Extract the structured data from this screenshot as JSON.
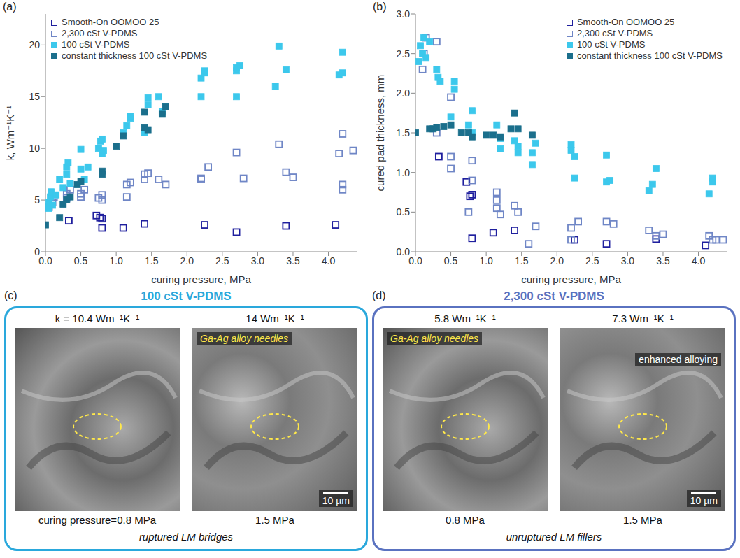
{
  "chart_data": [
    {
      "type": "scatter",
      "title": "(a)",
      "x_label": "curing pressure, MPa",
      "y_label": "k, Wm⁻¹K⁻¹",
      "xlim": [
        0,
        4.4
      ],
      "xticks": [
        {
          "value": 0,
          "label": "0.0"
        },
        0.5,
        {
          "value": 1,
          "label": "1.0"
        },
        1.5,
        {
          "value": 2,
          "label": "2.0"
        },
        2.5,
        {
          "value": 3,
          "label": "3.0"
        },
        3.5,
        {
          "value": 4,
          "label": "4.0"
        }
      ],
      "ylim": [
        0,
        23
      ],
      "yticks": [
        0,
        5,
        10,
        15,
        20
      ],
      "legend": "top-left",
      "series": [
        {
          "name": "Smooth-On OOMOO 25",
          "color": "#1f1f9e",
          "marker": "square-open",
          "x": [
            0.33,
            0.72,
            0.77,
            0.8,
            0.8,
            1.1,
            1.4,
            2.25,
            2.7,
            3.4,
            4.1
          ],
          "values": [
            3.0,
            3.5,
            3.3,
            2.3,
            3.2,
            2.3,
            2.7,
            2.6,
            1.9,
            2.5,
            2.6
          ]
        },
        {
          "name": "2,300 cSt V-PDMS",
          "color": "#6f86c6",
          "marker": "square-open",
          "x": [
            0.05,
            0.1,
            0.12,
            0.3,
            0.3,
            0.35,
            0.5,
            0.5,
            0.55,
            0.75,
            0.8,
            0.8,
            1.15,
            1.15,
            1.2,
            1.4,
            1.4,
            1.45,
            1.6,
            1.7,
            2.2,
            2.2,
            2.3,
            2.7,
            2.8,
            3.3,
            3.4,
            3.5,
            4.15,
            4.2,
            4.2,
            4.2,
            4.35
          ],
          "values": [
            4.3,
            4.8,
            5.3,
            5.2,
            5.6,
            6.0,
            5.3,
            5.6,
            6.0,
            5.2,
            5.5,
            5.0,
            5.3,
            6.5,
            6.7,
            7.0,
            7.5,
            7.6,
            7.0,
            6.5,
            7.0,
            7.1,
            8.2,
            9.6,
            7.1,
            10.4,
            7.7,
            7.2,
            9.5,
            11.4,
            6.5,
            6.0,
            9.8
          ]
        },
        {
          "name": "100 cSt V-PDMS",
          "color": "#3cc8ec",
          "marker": "square",
          "x": [
            0.05,
            0.05,
            0.07,
            0.08,
            0.1,
            0.15,
            0.2,
            0.25,
            0.3,
            0.3,
            0.32,
            0.35,
            0.5,
            0.5,
            0.55,
            0.6,
            0.75,
            0.78,
            0.8,
            0.8,
            0.82,
            1.1,
            1.15,
            1.2,
            1.2,
            1.4,
            1.45,
            1.45,
            1.6,
            1.65,
            1.7,
            2.2,
            2.2,
            2.25,
            2.25,
            2.7,
            2.7,
            2.7,
            2.75,
            3.25,
            3.3,
            3.4,
            4.15,
            4.2,
            4.2
          ],
          "values": [
            4.2,
            4.8,
            5.3,
            5.8,
            4.5,
            5.5,
            7.0,
            6.2,
            7.5,
            8.2,
            8.6,
            6.6,
            8.0,
            9.9,
            7.0,
            8.2,
            10.0,
            10.7,
            10.9,
            9.5,
            9.8,
            11.5,
            12.2,
            12.9,
            13.1,
            11.5,
            14.9,
            14.2,
            15.0,
            13.6,
            14.0,
            15.0,
            16.8,
            17.3,
            17.5,
            17.5,
            17.8,
            15.0,
            18.0,
            16.0,
            19.9,
            17.6,
            17.1,
            17.3,
            19.3
          ]
        },
        {
          "name": "constant thickness 100 cSt V-PDMS",
          "color": "#1b6f8c",
          "marker": "square",
          "x": [
            0.0,
            0.2,
            0.25,
            0.3,
            0.35,
            0.45,
            0.5,
            0.8,
            0.8,
            1.0,
            1.1,
            1.4,
            1.4,
            1.45,
            1.65,
            1.7
          ],
          "values": [
            2.6,
            3.3,
            4.6,
            5.0,
            5.3,
            6.5,
            6.8,
            7.8,
            7.5,
            10.2,
            11.2,
            12.0,
            13.5,
            11.8,
            13.3,
            14.0
          ]
        }
      ]
    },
    {
      "type": "scatter",
      "title": "(b)",
      "x_label": "curing pressure, MPa",
      "y_label": "cured pad thickness, mm",
      "xlim": [
        0,
        4.4
      ],
      "xticks": [
        {
          "value": 0,
          "label": "0.0"
        },
        0.5,
        {
          "value": 1,
          "label": "1.0"
        },
        1.5,
        {
          "value": 2,
          "label": "2.0"
        },
        2.5,
        {
          "value": 3,
          "label": "3.0"
        },
        3.5,
        {
          "value": 4,
          "label": "4.0"
        }
      ],
      "ylim": [
        0,
        3
      ],
      "yticks": [
        {
          "value": 0,
          "label": "0.0"
        },
        0.5,
        {
          "value": 1,
          "label": "1.0"
        },
        1.5,
        {
          "value": 2,
          "label": "2.0"
        },
        2.5,
        {
          "value": 3,
          "label": "3.0"
        }
      ],
      "legend": "top-right",
      "series": [
        {
          "name": "Smooth-On OOMOO 25",
          "color": "#1f1f9e",
          "marker": "square-open",
          "x": [
            0.33,
            0.72,
            0.77,
            0.8,
            0.8,
            1.1,
            1.4,
            2.25,
            2.7,
            3.4,
            4.1
          ],
          "values": [
            1.2,
            0.88,
            0.7,
            0.17,
            0.72,
            0.24,
            0.27,
            0.15,
            0.1,
            0.16,
            0.08
          ]
        },
        {
          "name": "2,300 cSt V-PDMS",
          "color": "#6f86c6",
          "marker": "square-open",
          "x": [
            0.1,
            0.12,
            0.15,
            0.3,
            0.3,
            0.5,
            0.5,
            0.5,
            0.75,
            0.8,
            0.8,
            1.15,
            1.15,
            1.15,
            1.2,
            1.4,
            1.45,
            1.6,
            1.7,
            2.2,
            2.2,
            2.3,
            2.7,
            2.8,
            3.3,
            3.4,
            3.5,
            4.15,
            4.2,
            4.25,
            4.35
          ],
          "values": [
            2.3,
            2.5,
            2.7,
            1.5,
            2.65,
            1.95,
            1.05,
            1.2,
            0.5,
            1.15,
            0.9,
            0.75,
            0.65,
            0.55,
            0.47,
            0.58,
            0.5,
            0.1,
            0.32,
            0.3,
            0.15,
            0.38,
            0.38,
            0.35,
            0.27,
            0.2,
            0.22,
            0.2,
            0.15,
            0.15,
            0.15
          ]
        },
        {
          "name": "100 cSt V-PDMS",
          "color": "#3cc8ec",
          "marker": "square",
          "x": [
            0.05,
            0.07,
            0.1,
            0.12,
            0.15,
            0.2,
            0.3,
            0.32,
            0.35,
            0.5,
            0.55,
            0.55,
            0.75,
            0.8,
            0.8,
            1.15,
            1.2,
            1.2,
            1.4,
            1.45,
            1.45,
            1.65,
            1.65,
            1.7,
            2.2,
            2.2,
            2.25,
            2.25,
            2.7,
            2.7,
            2.75,
            3.3,
            3.35,
            3.4,
            4.15,
            4.2,
            4.2
          ],
          "values": [
            2.4,
            2.6,
            2.5,
            2.7,
            2.45,
            2.65,
            2.3,
            2.2,
            2.15,
            1.7,
            2.15,
            2.05,
            1.6,
            1.78,
            1.5,
            1.6,
            1.43,
            1.3,
            1.4,
            1.25,
            1.33,
            1.1,
            1.25,
            1.37,
            1.35,
            1.28,
            1.2,
            0.93,
            1.22,
            0.88,
            0.9,
            0.77,
            0.85,
            1.05,
            0.73,
            0.88,
            0.93
          ]
        },
        {
          "name": "constant thickness 100 cSt V-PDMS",
          "color": "#1b6f8c",
          "marker": "square",
          "x": [
            0.0,
            0.2,
            0.25,
            0.3,
            0.4,
            0.5,
            0.65,
            0.75,
            0.8,
            1.0,
            1.1,
            1.2,
            1.35,
            1.4,
            1.45,
            1.65
          ],
          "values": [
            1.5,
            1.55,
            1.55,
            1.57,
            1.58,
            1.6,
            1.5,
            1.5,
            1.45,
            1.47,
            1.47,
            1.45,
            1.55,
            1.75,
            1.55,
            1.47
          ]
        }
      ]
    }
  ],
  "panels": [
    {
      "letter": "(c)",
      "title": "100 cSt V-PDMS",
      "color": "#2aa8dc",
      "caption": "ruptured LM bridges",
      "images": [
        {
          "k_label": "k = 10.4 Wm⁻¹K⁻¹",
          "pressure_label": "curing pressure=0.8 MPa"
        },
        {
          "k_label": "14 Wm⁻¹K⁻¹",
          "pressure_label": "1.5 MPa",
          "annotation": "Ga-Ag alloy needles",
          "scale_bar": "10 µm"
        }
      ]
    },
    {
      "letter": "(d)",
      "title": "2,300 cSt V-PDMS",
      "color": "#5a72c0",
      "caption": "unruptured LM fillers",
      "images": [
        {
          "k_label": "5.8 Wm⁻¹K⁻¹",
          "pressure_label": "0.8 MPa",
          "annotation": "Ga-Ag alloy needles"
        },
        {
          "k_label": "7.3 Wm⁻¹K⁻¹",
          "pressure_label": "1.5 MPa",
          "note": "enhanced alloying",
          "scale_bar": "10 µm"
        }
      ]
    }
  ]
}
